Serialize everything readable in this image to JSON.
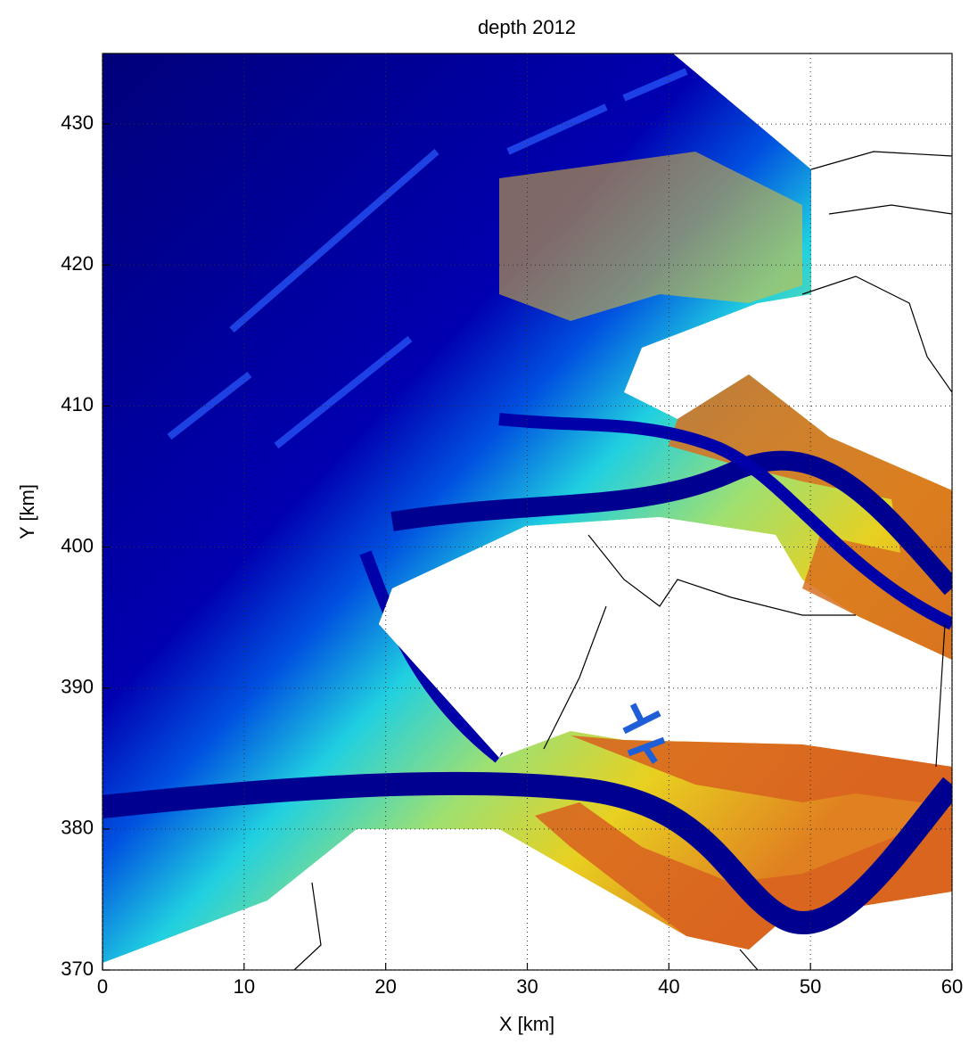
{
  "chart_data": {
    "type": "map",
    "title": "depth 2012",
    "xlabel": "X [km]",
    "ylabel": "Y [km]",
    "xlim": [
      0,
      60
    ],
    "ylim": [
      370,
      435
    ],
    "xticks": [
      0,
      10,
      20,
      30,
      40,
      50,
      60
    ],
    "yticks": [
      370,
      380,
      390,
      400,
      410,
      420,
      430
    ],
    "grid": true
  }
}
